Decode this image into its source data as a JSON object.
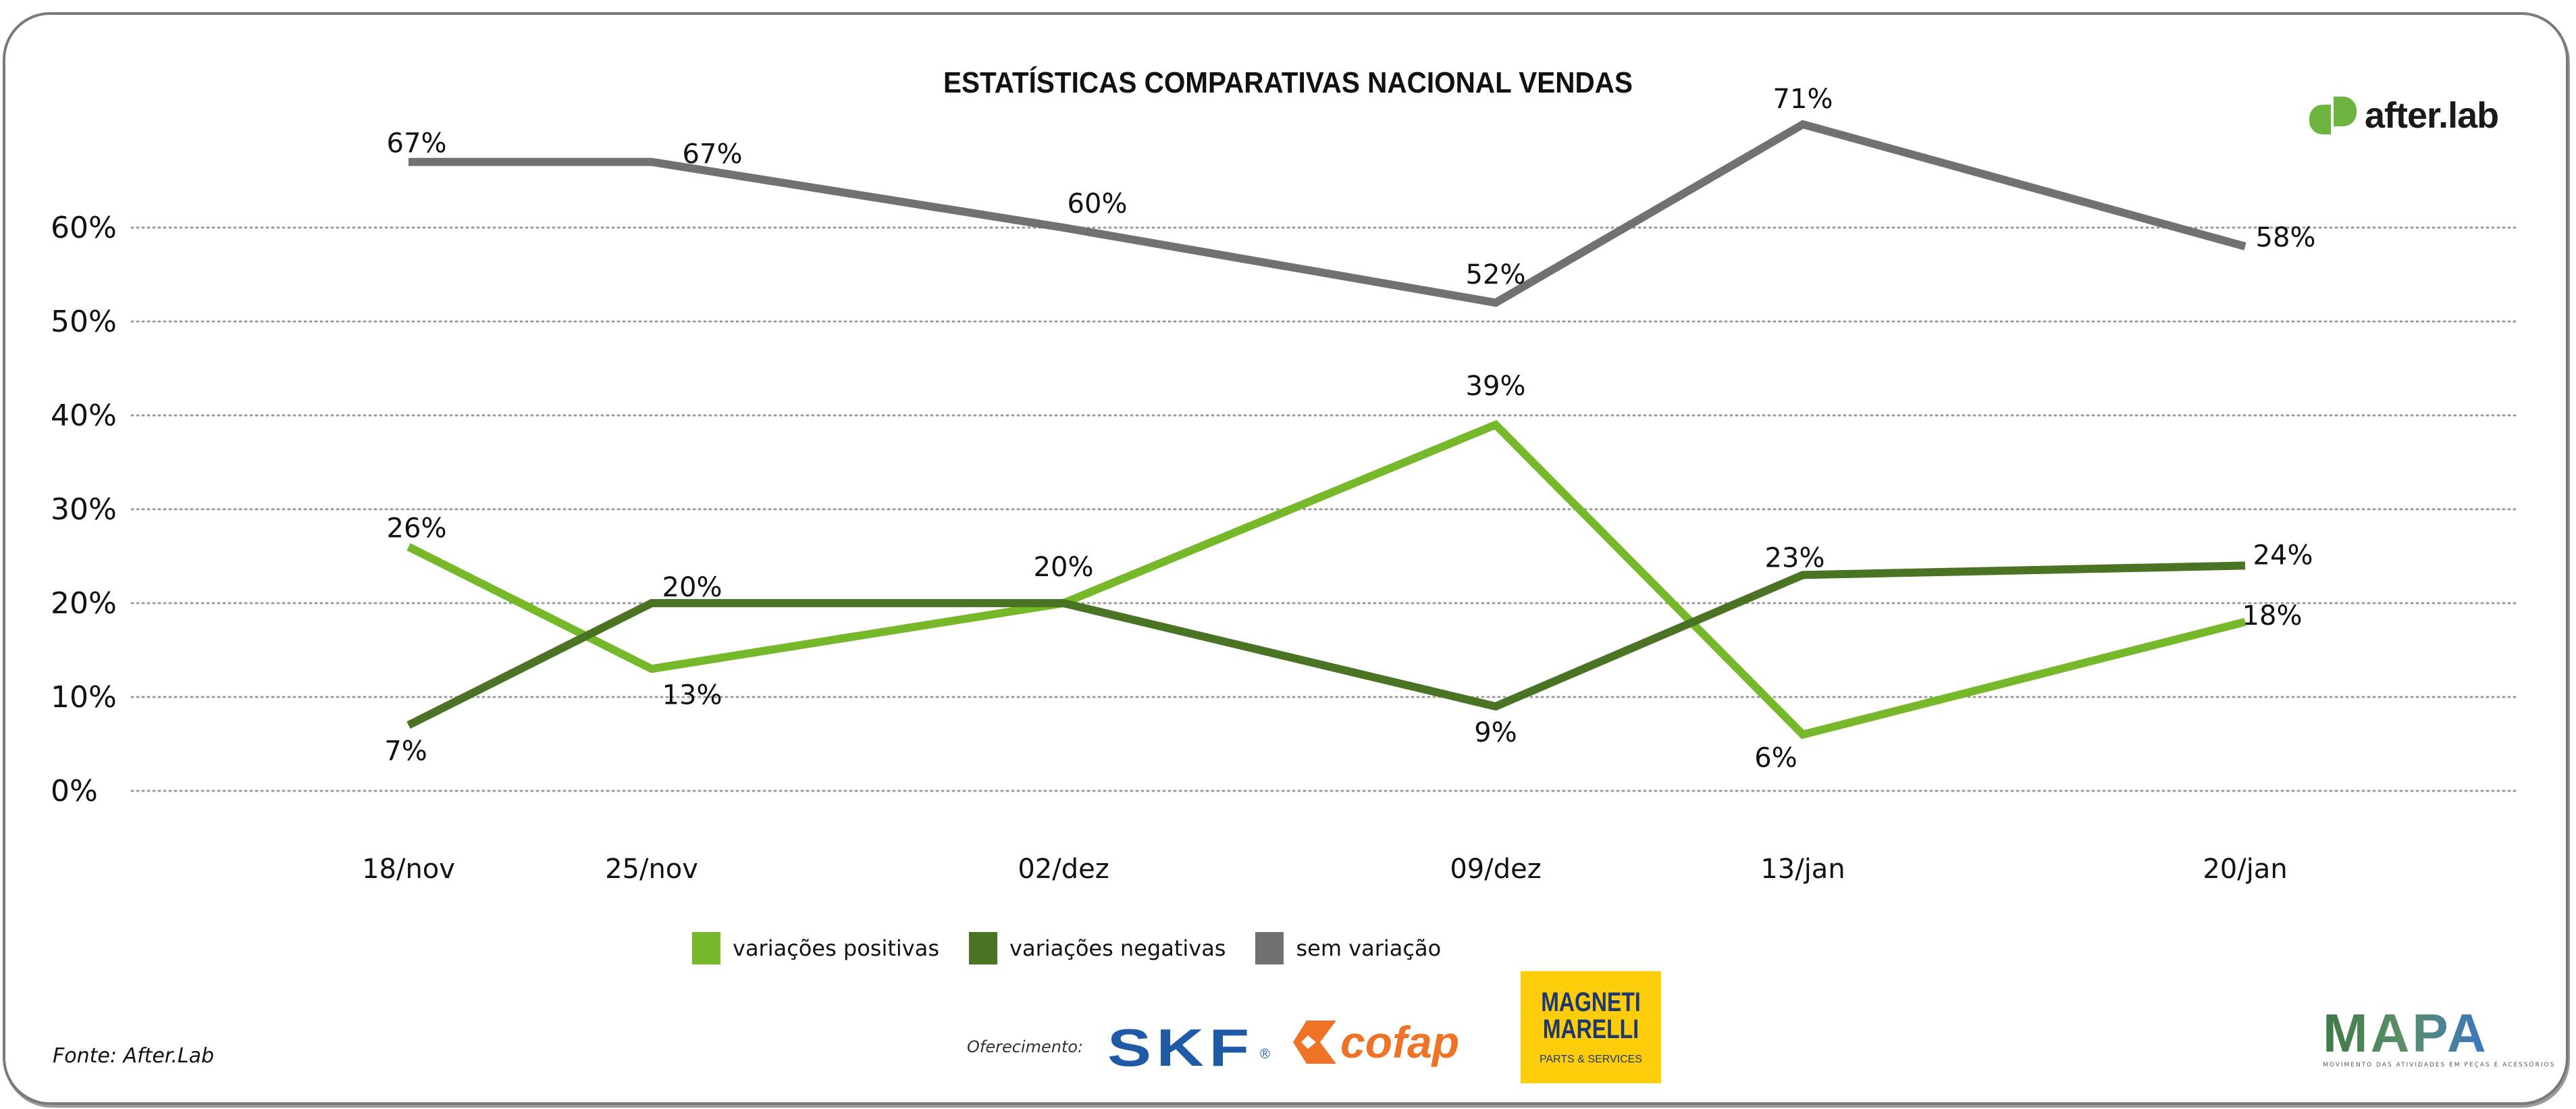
{
  "header": {
    "title": "ESTATÍSTICAS COMPARATIVAS NACIONAL VENDAS",
    "brand_logo": {
      "icon": "afterlab-logo-icon",
      "text": "after.lab",
      "color": "#6db33f"
    }
  },
  "chart_data": {
    "type": "line",
    "title": "ESTATÍSTICAS COMPARATIVAS NACIONAL VENDAS",
    "xlabel": "",
    "ylabel": "",
    "categories": [
      "18/nov",
      "25/nov",
      "02/dez",
      "09/dez",
      "13/jan",
      "20/jan"
    ],
    "yticks": [
      "0%",
      "10%",
      "20%",
      "30%",
      "40%",
      "50%",
      "60%"
    ],
    "ylim": [
      0,
      60
    ],
    "grid": true,
    "legend_position": "bottom-center",
    "series": [
      {
        "name": "variações positivas",
        "color": "#76b82a",
        "values": [
          26,
          13,
          20,
          39,
          6,
          18
        ],
        "labels": [
          "26%",
          "13%",
          "20%",
          "39%",
          "6%",
          "18%"
        ]
      },
      {
        "name": "variações negativas",
        "color": "#4a7324",
        "values": [
          7,
          20,
          20,
          9,
          23,
          24
        ],
        "labels": [
          "7%",
          "20%",
          "",
          "9%",
          "23%",
          "24%"
        ]
      },
      {
        "name": "sem variação",
        "color": "#717171",
        "values": [
          67,
          67,
          60,
          52,
          71,
          58
        ],
        "labels": [
          "67%",
          "67%",
          "60%",
          "52%",
          "71%",
          "58%"
        ]
      }
    ]
  },
  "footer": {
    "source": "Fonte: After.Lab",
    "sponsor_label": "Oferecimento:",
    "sponsors": [
      {
        "name": "SKF",
        "text": "SKF",
        "mark": "®",
        "color": "#1f5aa6"
      },
      {
        "name": "Cofap",
        "text": "cofap",
        "color": "#ee7326"
      },
      {
        "name": "Magneti Marelli",
        "line1": "MAGNETI",
        "line2": "MARELLI",
        "line3": "PARTS & SERVICES",
        "bg": "#fecd0a",
        "color": "#1d3770"
      }
    ],
    "partner_logo": {
      "text": "MAPA",
      "subtitle": "MOVIMENTO DAS ATIVIDADES EM PEÇAS E ACESSÓRIOS"
    }
  }
}
